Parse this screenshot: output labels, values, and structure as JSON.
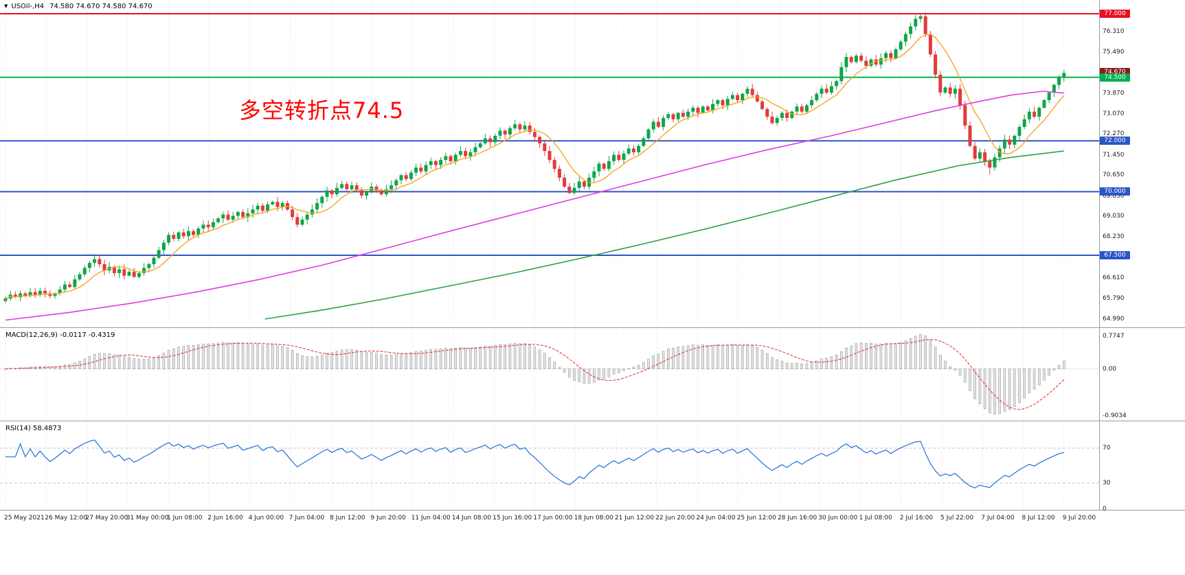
{
  "header": {
    "dropdown_icon": "▼",
    "symbol_period": "USOil-,H4",
    "ohlc_values": "74.580 74.670 74.580 74.670"
  },
  "annotation": {
    "text": "多空转折点74.5",
    "color": "#ff0000"
  },
  "chart_data": {
    "type": "candlestick",
    "title": "USOil-,H4",
    "timeframe": "H4",
    "ylim": [
      64.99,
      77.0
    ],
    "y_ticks": [
      77.0,
      76.31,
      75.49,
      74.67,
      73.87,
      73.07,
      72.27,
      71.45,
      70.65,
      69.83,
      69.03,
      68.23,
      67.41,
      66.61,
      65.79,
      64.99
    ],
    "x_tick_labels": [
      "25 May 2021",
      "26 May 12:00",
      "27 May 20:00",
      "31 May 00:00",
      "1 Jun 08:00",
      "2 Jun 16:00",
      "4 Jun 00:00",
      "7 Jun 04:00",
      "8 Jun 12:00",
      "9 Jun 20:00",
      "11 Jun 04:00",
      "14 Jun 08:00",
      "15 Jun 16:00",
      "17 Jun 00:00",
      "18 Jun 08:00",
      "21 Jun 12:00",
      "22 Jun 20:00",
      "24 Jun 04:00",
      "25 Jun 12:00",
      "28 Jun 16:00",
      "30 Jun 00:00",
      "1 Jul 08:00",
      "2 Jul 16:00",
      "5 Jul 22:00",
      "7 Jul 04:00",
      "8 Jul 12:00",
      "9 Jul 20:00"
    ],
    "open_first": 65.7,
    "closes": [
      65.8,
      65.95,
      65.85,
      66.0,
      65.9,
      66.05,
      65.95,
      66.1,
      66.0,
      65.9,
      66.0,
      66.15,
      66.35,
      66.25,
      66.55,
      66.75,
      67.0,
      67.2,
      67.35,
      67.15,
      66.9,
      67.05,
      66.8,
      66.95,
      66.7,
      66.85,
      66.65,
      66.8,
      67.0,
      67.15,
      67.4,
      67.7,
      68.0,
      68.3,
      68.15,
      68.4,
      68.25,
      68.45,
      68.3,
      68.55,
      68.7,
      68.6,
      68.8,
      68.95,
      69.1,
      68.9,
      69.05,
      69.2,
      69.0,
      69.15,
      69.3,
      69.45,
      69.25,
      69.5,
      69.6,
      69.4,
      69.55,
      69.3,
      69.0,
      68.7,
      68.9,
      69.1,
      69.3,
      69.55,
      69.8,
      70.05,
      69.9,
      70.15,
      70.3,
      70.1,
      70.25,
      70.05,
      69.85,
      70.0,
      70.2,
      70.05,
      69.9,
      70.1,
      70.25,
      70.45,
      70.65,
      70.5,
      70.75,
      70.95,
      70.8,
      71.05,
      71.2,
      71.05,
      71.25,
      71.4,
      71.2,
      71.45,
      71.6,
      71.4,
      71.55,
      71.75,
      71.9,
      72.1,
      71.95,
      72.2,
      72.4,
      72.25,
      72.5,
      72.65,
      72.45,
      72.6,
      72.35,
      72.15,
      71.9,
      71.6,
      71.25,
      70.9,
      70.55,
      70.2,
      69.95,
      70.15,
      70.4,
      70.2,
      70.55,
      70.8,
      71.1,
      70.9,
      71.2,
      71.45,
      71.25,
      71.5,
      71.7,
      71.55,
      71.8,
      72.1,
      72.45,
      72.75,
      72.55,
      72.9,
      73.05,
      72.85,
      73.1,
      72.95,
      73.15,
      73.3,
      73.1,
      73.35,
      73.2,
      73.45,
      73.6,
      73.4,
      73.65,
      73.8,
      73.6,
      73.85,
      74.05,
      73.8,
      73.55,
      73.25,
      72.95,
      72.7,
      72.9,
      73.1,
      72.9,
      73.15,
      73.35,
      73.15,
      73.4,
      73.6,
      73.85,
      74.05,
      73.9,
      74.15,
      74.35,
      74.9,
      75.3,
      75.1,
      75.35,
      75.15,
      74.95,
      75.2,
      75.0,
      75.25,
      75.45,
      75.25,
      75.6,
      75.9,
      76.2,
      76.5,
      76.8,
      76.9,
      76.2,
      75.4,
      74.6,
      73.9,
      74.1,
      73.85,
      74.05,
      73.4,
      72.6,
      71.8,
      71.3,
      71.55,
      71.2,
      70.95,
      71.35,
      71.7,
      72.05,
      71.85,
      72.2,
      72.55,
      72.85,
      73.15,
      72.95,
      73.3,
      73.6,
      73.9,
      74.2,
      74.5,
      74.67
    ],
    "wick_extremes": {
      "185": {
        "high": 77.0
      },
      "199": {
        "low": 70.68
      }
    },
    "horizontal_lines": [
      {
        "price": 77.0,
        "color": "#e81123",
        "label": "77.000",
        "label_bg": "#e81123"
      },
      {
        "price": 74.5,
        "color": "#00b050",
        "label": "74.500",
        "label_bg": "#00b050"
      },
      {
        "price": 72.0,
        "color": "#2b56c8",
        "label": "72.000",
        "label_bg": "#2b56c8"
      },
      {
        "price": 70.0,
        "color": "#2b56c8",
        "label": "70.000",
        "label_bg": "#2b56c8"
      },
      {
        "price": 67.5,
        "color": "#2b56c8",
        "label": "67.500",
        "label_bg": "#2b56c8"
      }
    ],
    "current_price": {
      "value": 74.67,
      "label": "74.670",
      "label_bg": "#8b1a1a"
    },
    "candle_colors": {
      "up": "#10a54a",
      "down": "#e23b3b"
    },
    "moving_averages": {
      "fast": {
        "color": "#f5a623",
        "period": 8
      },
      "mid": {
        "color": "#e23ae2",
        "waypoints": [
          [
            0.0,
            64.95
          ],
          [
            0.06,
            65.25
          ],
          [
            0.12,
            65.62
          ],
          [
            0.18,
            66.05
          ],
          [
            0.24,
            66.55
          ],
          [
            0.3,
            67.12
          ],
          [
            0.36,
            67.78
          ],
          [
            0.42,
            68.45
          ],
          [
            0.48,
            69.1
          ],
          [
            0.54,
            69.75
          ],
          [
            0.6,
            70.4
          ],
          [
            0.66,
            71.05
          ],
          [
            0.72,
            71.65
          ],
          [
            0.78,
            72.2
          ],
          [
            0.84,
            72.8
          ],
          [
            0.88,
            73.2
          ],
          [
            0.92,
            73.55
          ],
          [
            0.95,
            73.8
          ],
          [
            0.98,
            73.95
          ],
          [
            1.0,
            73.88
          ]
        ]
      },
      "slow": {
        "color": "#2f9e44",
        "waypoints": [
          [
            0.245,
            64.99
          ],
          [
            0.3,
            65.35
          ],
          [
            0.36,
            65.8
          ],
          [
            0.42,
            66.3
          ],
          [
            0.48,
            66.8
          ],
          [
            0.54,
            67.35
          ],
          [
            0.6,
            67.92
          ],
          [
            0.66,
            68.52
          ],
          [
            0.72,
            69.15
          ],
          [
            0.78,
            69.8
          ],
          [
            0.84,
            70.45
          ],
          [
            0.9,
            71.02
          ],
          [
            0.95,
            71.35
          ],
          [
            1.0,
            71.6
          ]
        ]
      }
    }
  },
  "indicators": {
    "macd": {
      "title": "MACD(12,26,9)",
      "values": "-0.0117 -0.4319",
      "axis_labels": [
        "0.7747",
        "0.00",
        "-0.9034"
      ],
      "histogram_color": "#e2e2e2",
      "histogram_border": "#9e9e9e",
      "signal_color": "#e53935"
    },
    "rsi": {
      "title": "RSI(14)",
      "value": "58.4873",
      "axis_labels": [
        "70",
        "30",
        "0"
      ],
      "axis_values": [
        70,
        30,
        0
      ],
      "levels": [
        70,
        30
      ],
      "line_color": "#1e6fd9"
    }
  }
}
